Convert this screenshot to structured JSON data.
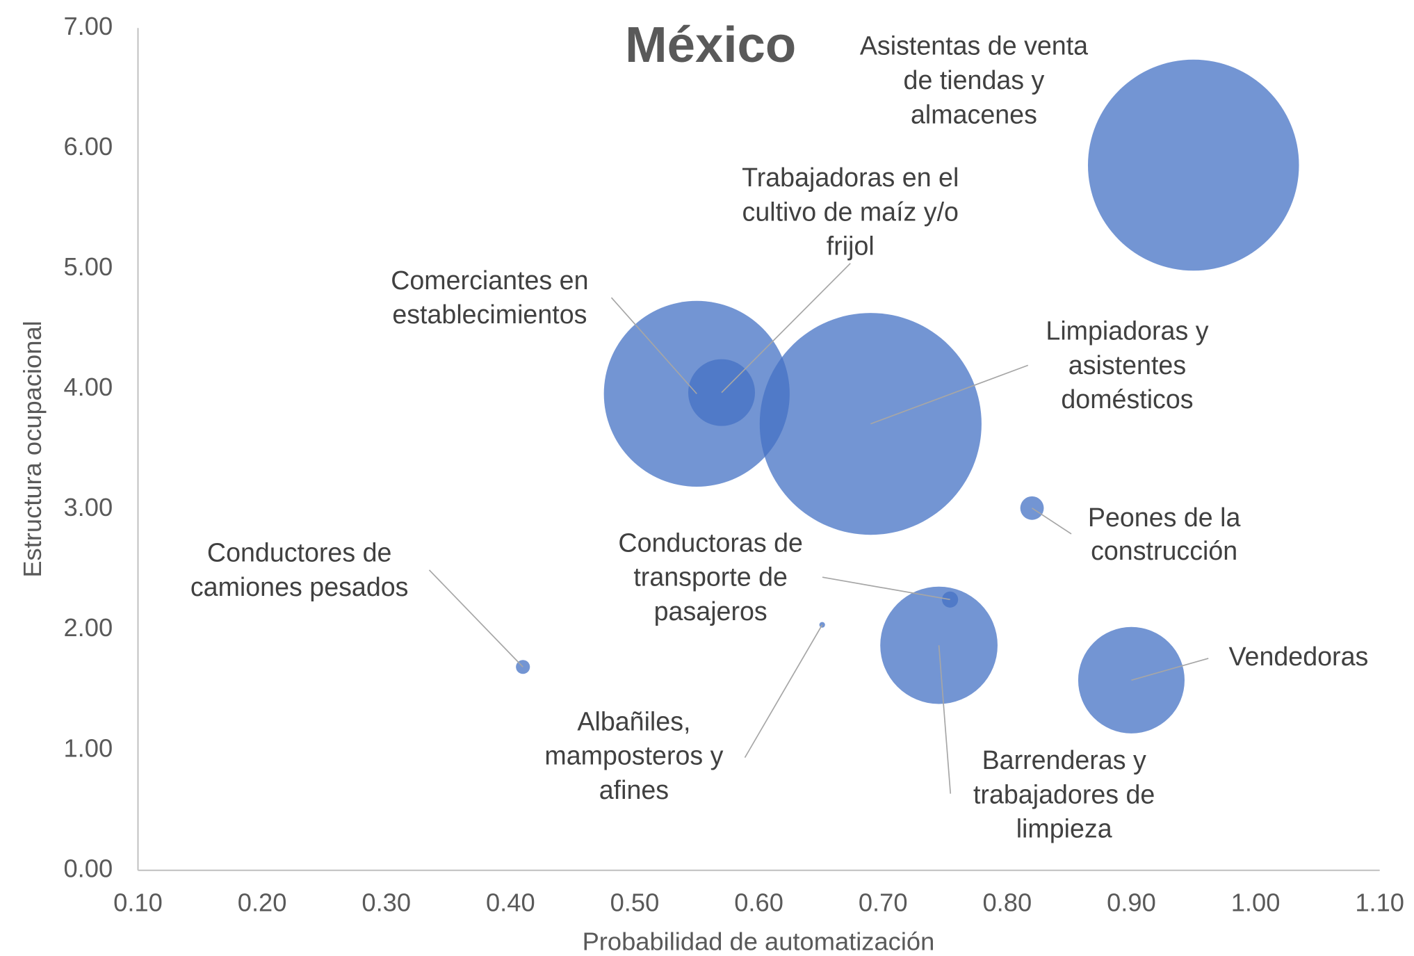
{
  "chart_data": {
    "type": "bubble",
    "title": "México",
    "x_label": "Probabilidad de automatización",
    "y_label": "Estructura ocupacional",
    "xlim": [
      0.1,
      1.1
    ],
    "ylim": [
      0,
      7
    ],
    "xticks": [
      {
        "value": 0.1,
        "label": "0.10"
      },
      {
        "value": 0.2,
        "label": "0.20"
      },
      {
        "value": 0.3,
        "label": "0.30"
      },
      {
        "value": 0.4,
        "label": "0.40"
      },
      {
        "value": 0.5,
        "label": "0.50"
      },
      {
        "value": 0.6,
        "label": "0.60"
      },
      {
        "value": 0.7,
        "label": "0.70"
      },
      {
        "value": 0.8,
        "label": "0.80"
      },
      {
        "value": 0.9,
        "label": "0.90"
      },
      {
        "value": 1.0,
        "label": "1.00"
      },
      {
        "value": 1.1,
        "label": "1.10"
      }
    ],
    "yticks": [
      {
        "value": 0,
        "label": "0.00"
      },
      {
        "value": 1,
        "label": "1.00"
      },
      {
        "value": 2,
        "label": "2.00"
      },
      {
        "value": 3,
        "label": "3.00"
      },
      {
        "value": 4,
        "label": "4.00"
      },
      {
        "value": 5,
        "label": "5.00"
      },
      {
        "value": 6,
        "label": "6.00"
      },
      {
        "value": 7,
        "label": "7.00"
      }
    ],
    "series": [
      {
        "color": "#4472c4",
        "labels": [
          [
            "Asistentas de venta",
            "de tiendas y",
            "almacenes"
          ],
          [
            "Comerciantes en",
            "establecimientos"
          ],
          [
            "Trabajadoras en el",
            "cultivo de maíz y/o",
            "frijol"
          ],
          [
            "Limpiadoras y",
            "asistentes",
            "domésticos"
          ],
          [
            "Peones de la",
            "construcción"
          ],
          [
            "Conductoras de",
            "transporte de",
            "pasajeros"
          ],
          [
            "Barrenderas y",
            "trabajadores de",
            "limpieza"
          ],
          [
            "Vendedoras"
          ],
          [
            "Conductores de",
            "camiones pesados"
          ],
          [
            "Albañiles,",
            "mamposteros y",
            "afines"
          ]
        ],
        "x": [
          0.95,
          0.55,
          0.57,
          0.69,
          0.82,
          0.754,
          0.745,
          0.9,
          0.41,
          0.651
        ],
        "values": [
          5.86,
          3.96,
          3.97,
          3.71,
          3.01,
          2.25,
          1.87,
          1.58,
          1.69,
          2.04
        ],
        "sizes": [
          136.9,
          106.1,
          13.7,
          151.3,
          1.7,
          0.8,
          42.3,
          34.8,
          0.6,
          0.1
        ]
      }
    ]
  }
}
